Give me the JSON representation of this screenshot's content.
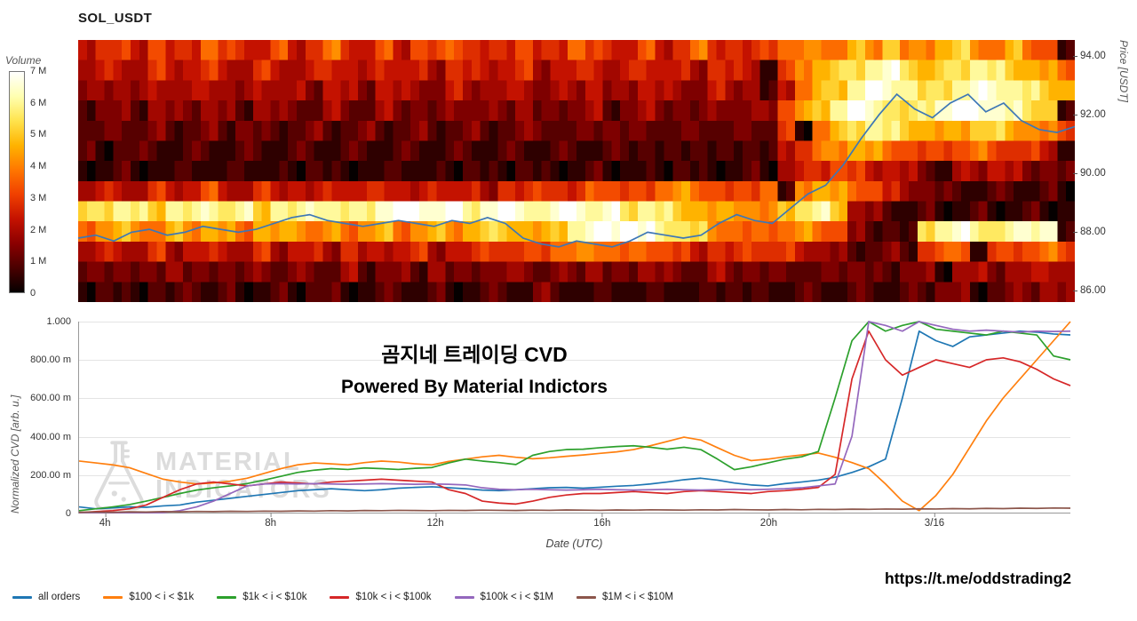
{
  "title": "SOL_USDT",
  "footer": {
    "url": "https://t.me/oddstrading2"
  },
  "chart_data": [
    {
      "type": "heatmap",
      "colorbar_label": "Volume",
      "volume_ticks": [
        "7 M",
        "6 M",
        "5 M",
        "4 M",
        "3 M",
        "2 M",
        "1 M",
        "0"
      ],
      "price_axis_label": "Price [USDT]",
      "price_ticks": [
        94.0,
        92.0,
        90.0,
        88.0,
        86.0
      ],
      "price_top": 94.55,
      "price_bottom": 85.62,
      "colormap_stops": [
        "#050000",
        "#4a0000",
        "#8b0000",
        "#c41200",
        "#f04000",
        "#ff7700",
        "#ffb300",
        "#ffe34d",
        "#ffffb0",
        "#ffffff"
      ],
      "rows": [
        "56657568665756865757686567568665756866578898a9b89ab98a87",
        "455465565465456546554655564556456554655 69abcdecabcdcba98",
        "344354454354435435443544453445345443544 58abdfedbcdeedcba",
        "233243343243324324332433342334234332433479bdfecbdeffedcb",
        "22323223232223223223223223322332322322326 8acdcba9abba987",
        "21222122122122122122122122122122212212215689a98767787665",
        "1121112112111211112111211211121111211121456765543 4454332",
        "4554655754655465565465546576587678987678 9a98754322122121",
        "bcdcbdcecdbdcedcdeffefdefedefdecdcba9a98bcdb432121121121",
        "89a98a9a98a9a8989a89a9abba9bdeffedcb987889873221cdedcdee",
        "455464555464554645564557667889878765657665432232678 67787",
        "2332342332423324233242333423342343324332322332233 4434454",
        "121121312112122112212112213211211211221212212212233 23343"
      ],
      "price_line": {
        "color": "#3d77b6",
        "values": [
          87.8,
          87.9,
          87.7,
          88.0,
          88.1,
          87.9,
          88.0,
          88.2,
          88.1,
          88.0,
          88.1,
          88.3,
          88.5,
          88.6,
          88.4,
          88.3,
          88.2,
          88.3,
          88.4,
          88.3,
          88.2,
          88.4,
          88.3,
          88.5,
          88.3,
          87.8,
          87.6,
          87.5,
          87.7,
          87.6,
          87.5,
          87.7,
          88.0,
          87.9,
          87.8,
          87.9,
          88.3,
          88.6,
          88.4,
          88.3,
          88.8,
          89.3,
          89.6,
          90.3,
          91.2,
          92.0,
          92.7,
          92.2,
          91.9,
          92.4,
          92.7,
          92.1,
          92.4,
          91.8,
          91.5,
          91.4,
          91.6
        ]
      }
    },
    {
      "type": "line",
      "overlay_title": "곰지네 트레이딩 CVD",
      "overlay_subtitle": "Powered By Material Indictors",
      "watermark": {
        "line1": "MATERIAL",
        "line2": "INDICATORS"
      },
      "y_axis_label": "Normalized CVD [arb. u.]",
      "x_axis_label": "Date (UTC)",
      "y_ticks": [
        "1.000",
        "800.00 m",
        "600.00 m",
        "400.00 m",
        "200.00 m",
        "0"
      ],
      "ylim": [
        0,
        1000
      ],
      "grid": "horizontal",
      "legend_position": "bottom",
      "x_ticks": [
        {
          "label": "4h",
          "pos": 0.027
        },
        {
          "label": "8h",
          "pos": 0.194
        },
        {
          "label": "12h",
          "pos": 0.36
        },
        {
          "label": "16h",
          "pos": 0.528
        },
        {
          "label": "20h",
          "pos": 0.696
        },
        {
          "label": "3/16",
          "pos": 0.863
        }
      ],
      "series": [
        {
          "name": "all orders",
          "color": "#1f77b4",
          "values": [
            30,
            20,
            25,
            30,
            28,
            35,
            40,
            55,
            65,
            75,
            85,
            95,
            105,
            115,
            120,
            125,
            120,
            115,
            120,
            128,
            132,
            135,
            130,
            125,
            118,
            115,
            120,
            125,
            130,
            132,
            128,
            133,
            138,
            142,
            150,
            160,
            172,
            180,
            170,
            155,
            145,
            140,
            152,
            160,
            170,
            185,
            210,
            240,
            280,
            600,
            950,
            900,
            870,
            920,
            930,
            940,
            950,
            945,
            935,
            930
          ]
        },
        {
          "name": "$100 < i < $1k",
          "color": "#ff7f0e",
          "values": [
            270,
            260,
            250,
            235,
            205,
            175,
            160,
            150,
            155,
            165,
            180,
            205,
            230,
            250,
            260,
            255,
            250,
            262,
            270,
            265,
            255,
            250,
            268,
            280,
            292,
            300,
            290,
            282,
            287,
            295,
            302,
            310,
            318,
            330,
            350,
            372,
            395,
            380,
            340,
            300,
            272,
            280,
            292,
            302,
            312,
            290,
            262,
            230,
            150,
            60,
            10,
            90,
            200,
            340,
            480,
            600,
            700,
            800,
            900,
            1000
          ]
        },
        {
          "name": "$1k < i < $10k",
          "color": "#2ca02c",
          "values": [
            10,
            20,
            30,
            42,
            60,
            80,
            100,
            118,
            130,
            140,
            152,
            170,
            190,
            210,
            222,
            230,
            226,
            234,
            230,
            226,
            232,
            236,
            260,
            280,
            270,
            262,
            252,
            300,
            320,
            330,
            332,
            340,
            346,
            350,
            342,
            332,
            342,
            330,
            280,
            225,
            240,
            260,
            280,
            292,
            320,
            600,
            900,
            1000,
            950,
            980,
            1000,
            960,
            950,
            940,
            930,
            950,
            940,
            930,
            820,
            800
          ]
        },
        {
          "name": "$10k < i < $100k",
          "color": "#d62728",
          "values": [
            0,
            5,
            10,
            20,
            40,
            80,
            120,
            150,
            160,
            150,
            140,
            150,
            160,
            155,
            150,
            160,
            165,
            170,
            175,
            170,
            165,
            160,
            120,
            100,
            60,
            50,
            45,
            60,
            80,
            92,
            100,
            100,
            105,
            110,
            105,
            100,
            110,
            115,
            110,
            105,
            100,
            110,
            115,
            122,
            132,
            200,
            700,
            950,
            800,
            720,
            760,
            800,
            780,
            760,
            800,
            810,
            790,
            750,
            700,
            665
          ]
        },
        {
          "name": "$100k < i < $1M",
          "color": "#9467bd",
          "values": [
            0,
            0,
            0,
            0,
            0,
            0,
            10,
            30,
            60,
            100,
            140,
            150,
            152,
            150,
            152,
            150,
            148,
            150,
            152,
            150,
            148,
            150,
            148,
            145,
            130,
            122,
            120,
            122,
            120,
            118,
            120,
            122,
            120,
            118,
            120,
            122,
            120,
            118,
            120,
            122,
            120,
            122,
            125,
            130,
            140,
            150,
            400,
            1000,
            980,
            950,
            1000,
            980,
            960,
            950,
            955,
            950,
            945,
            950,
            948,
            950
          ]
        },
        {
          "name": "$1M < i < $10M",
          "color": "#8c564b",
          "values": [
            2,
            3,
            2,
            4,
            3,
            5,
            4,
            6,
            5,
            7,
            6,
            8,
            7,
            9,
            8,
            10,
            9,
            11,
            10,
            12,
            11,
            10,
            12,
            11,
            13,
            12,
            11,
            13,
            12,
            14,
            13,
            12,
            14,
            13,
            15,
            14,
            13,
            15,
            14,
            16,
            15,
            14,
            16,
            15,
            17,
            16,
            18,
            17,
            19,
            18,
            20,
            19,
            21,
            20,
            22,
            21,
            23,
            22,
            24,
            23
          ]
        }
      ]
    }
  ]
}
